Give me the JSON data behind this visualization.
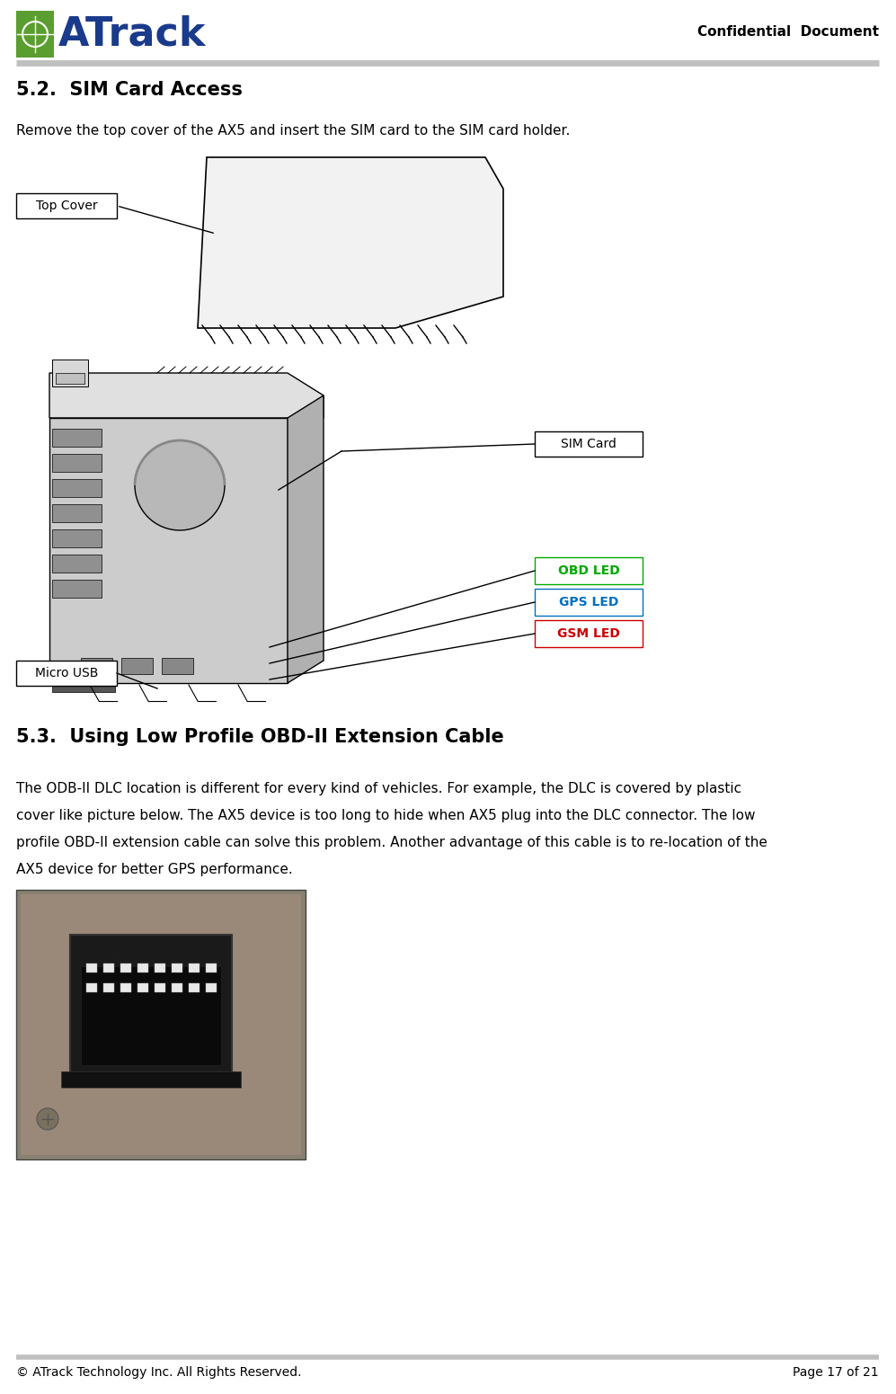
{
  "page_width": 9.97,
  "page_height": 15.51,
  "bg_color": "#ffffff",
  "header_line_color": "#c0c0c0",
  "footer_line_color": "#c0c0c0",
  "logo_text": "ATrack",
  "logo_green_color": "#5a9e2f",
  "logo_blue_color": "#1a3a8c",
  "header_right_text": "Confidential  Document",
  "section_title_52": "5.2.  SIM Card Access",
  "section_body_52": "Remove the top cover of the AX5 and insert the SIM card to the SIM card holder.",
  "label_top_cover": "Top Cover",
  "label_sim_card": "SIM Card",
  "label_obd_led": "OBD LED",
  "label_gps_led": "GPS LED",
  "label_gsm_led": "GSM LED",
  "label_micro_usb": "Micro USB",
  "obd_led_color": "#00aa00",
  "gps_led_color": "#0070c0",
  "gsm_led_color": "#cc0000",
  "section_title_53": "5.3.  Using Low Profile OBD-II Extension Cable",
  "section_body_53_line1": "The ODB-II DLC location is different for every kind of vehicles. For example, the DLC is covered by plastic",
  "section_body_53_line2": "cover like picture below. The AX5 device is too long to hide when AX5 plug into the DLC connector. The low",
  "section_body_53_line3": "profile OBD-II extension cable can solve this problem. Another advantage of this cable is to re-location of the",
  "section_body_53_line4": "AX5 device for better GPS performance.",
  "footer_left": "© ATrack Technology Inc. All Rights Reserved.",
  "footer_right": "Page 17 of 21"
}
